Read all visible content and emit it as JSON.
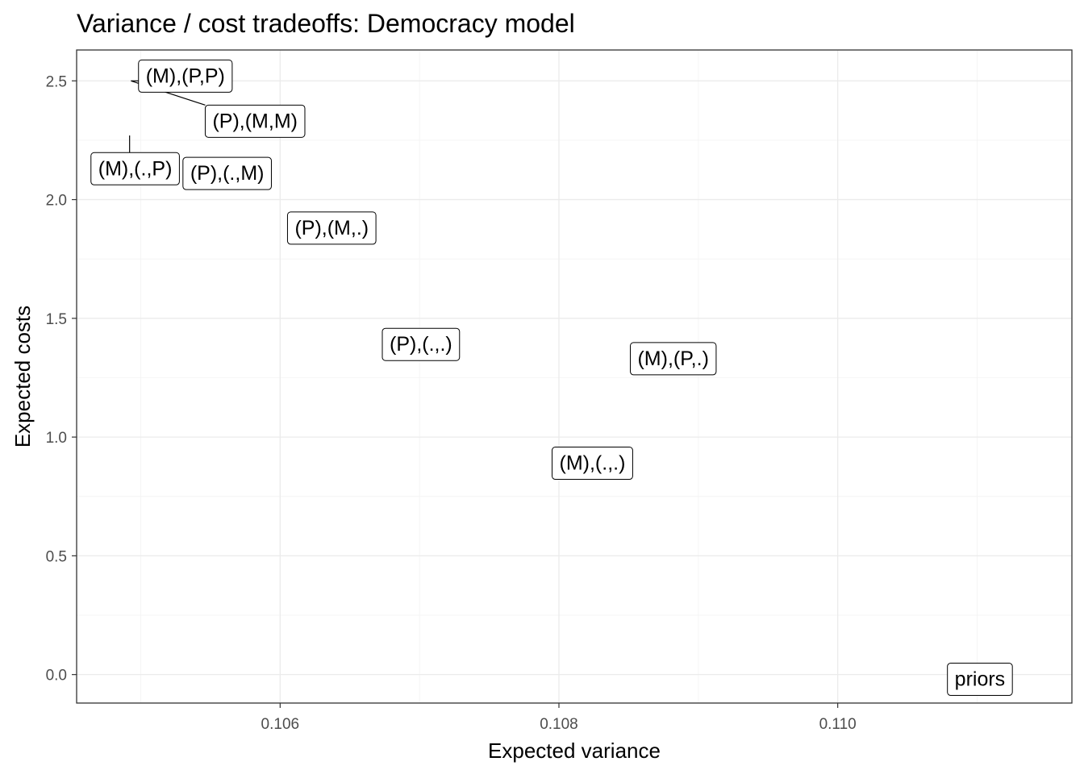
{
  "chart_data": {
    "type": "scatter",
    "title": "Variance / cost tradeoffs: Democracy model",
    "xlabel": "Expected variance",
    "ylabel": "Expected costs",
    "xlim": [
      0.10454,
      0.11168
    ],
    "ylim": [
      -0.12,
      2.63
    ],
    "x_ticks": [
      0.106,
      0.108,
      0.11
    ],
    "x_tick_labels": [
      "0.106",
      "0.108",
      "0.110"
    ],
    "y_ticks": [
      0.0,
      0.5,
      1.0,
      1.5,
      2.0,
      2.5
    ],
    "y_tick_labels": [
      "0.0",
      "0.5",
      "1.0",
      "1.5",
      "2.0",
      "2.5"
    ],
    "grid": true,
    "legend": "none",
    "points": [
      {
        "label": "(M),(P,P)",
        "x": 0.10493,
        "y": 2.5,
        "label_x": 0.10532,
        "label_y": 2.52
      },
      {
        "label": "(P),(M,M)",
        "x": 0.10493,
        "y": 2.5,
        "label_x": 0.10582,
        "label_y": 2.33
      },
      {
        "label": "(M),(.,P)",
        "x": 0.10492,
        "y": 2.27,
        "label_x": 0.10496,
        "label_y": 2.13
      },
      {
        "label": "(P),(.,M)",
        "x": 0.10562,
        "y": 2.11,
        "label_x": 0.10562,
        "label_y": 2.11
      },
      {
        "label": "(P),(M,.)",
        "x": 0.10637,
        "y": 1.88,
        "label_x": 0.10637,
        "label_y": 1.88
      },
      {
        "label": "(P),(.,.)",
        "x": 0.10701,
        "y": 1.39,
        "label_x": 0.10701,
        "label_y": 1.39
      },
      {
        "label": "(M),(P,.)",
        "x": 0.10882,
        "y": 1.33,
        "label_x": 0.10882,
        "label_y": 1.33
      },
      {
        "label": "(M),(.,.)",
        "x": 0.10824,
        "y": 0.89,
        "label_x": 0.10824,
        "label_y": 0.89
      },
      {
        "label": "priors",
        "x": 0.11102,
        "y": -0.02,
        "label_x": 0.11102,
        "label_y": -0.02
      }
    ]
  }
}
